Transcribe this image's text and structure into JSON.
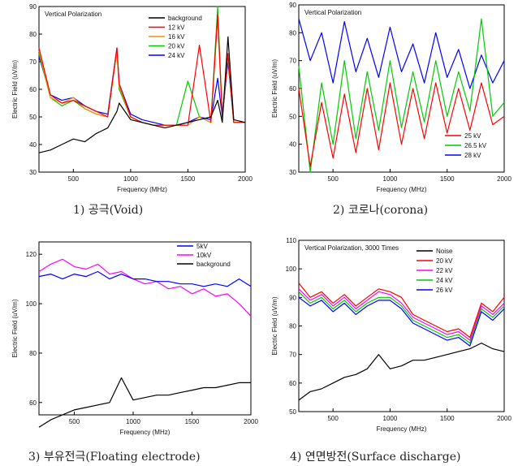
{
  "captions": [
    "1) 공극(Void)",
    "2) 코로나(corona)",
    "3) 부유전극(Floating electrode)",
    "4) 연면방전(Surface discharge)"
  ],
  "chart_data": [
    {
      "type": "line",
      "title": "Vertical Polarization",
      "xlabel": "Frequency (MHz)",
      "ylabel": "Electric Field (uV/m)",
      "xlim": [
        200,
        2000
      ],
      "ylim": [
        30,
        90
      ],
      "xticks": [
        500,
        1000,
        1500,
        2000
      ],
      "yticks": [
        30,
        40,
        50,
        60,
        70,
        80,
        90
      ],
      "legend_position": "top-right",
      "x": [
        200,
        300,
        400,
        500,
        600,
        700,
        800,
        880,
        900,
        1000,
        1100,
        1200,
        1300,
        1400,
        1500,
        1600,
        1700,
        1760,
        1800,
        1850,
        1900,
        2000
      ],
      "series": [
        {
          "name": "background",
          "color": "#000000",
          "values": [
            37,
            38,
            40,
            42,
            41,
            44,
            46,
            52,
            55,
            49,
            48,
            47,
            46,
            47,
            48,
            49,
            50,
            56,
            48,
            79,
            49,
            48
          ]
        },
        {
          "name": "12 kV",
          "color": "#ff0000",
          "values": [
            75,
            58,
            55,
            56,
            54,
            52,
            50,
            75,
            62,
            50,
            48,
            47,
            47,
            47,
            47,
            76,
            48,
            87,
            50,
            73,
            48,
            48
          ]
        },
        {
          "name": "16 kV",
          "color": "#ff8c00",
          "values": [
            74,
            57,
            55,
            57,
            53,
            51,
            50,
            74,
            61,
            50,
            48,
            47,
            47,
            47,
            47,
            50,
            48,
            86,
            50,
            72,
            48,
            48
          ]
        },
        {
          "name": "20 kV",
          "color": "#00cc00",
          "values": [
            73,
            57,
            54,
            56,
            53,
            51,
            50,
            74,
            60,
            50,
            48,
            47,
            47,
            47,
            63,
            50,
            48,
            90,
            50,
            72,
            48,
            48
          ]
        },
        {
          "name": "24 kV",
          "color": "#0000ff",
          "values": [
            72,
            58,
            56,
            57,
            54,
            52,
            51,
            75,
            62,
            51,
            49,
            48,
            47,
            47,
            48,
            50,
            49,
            64,
            50,
            70,
            48,
            48
          ]
        }
      ]
    },
    {
      "type": "line",
      "title": "Vertical Polarization",
      "xlabel": "Frequency (MHz)",
      "ylabel": "Electric Field (uV/m)",
      "xlim": [
        200,
        2000
      ],
      "ylim": [
        30,
        90
      ],
      "xticks": [
        500,
        1000,
        1500,
        2000
      ],
      "yticks": [
        30,
        40,
        50,
        60,
        70,
        80,
        90
      ],
      "legend_position": "bottom-right",
      "x": [
        200,
        300,
        400,
        500,
        600,
        700,
        800,
        900,
        1000,
        1100,
        1200,
        1300,
        1400,
        1500,
        1600,
        1700,
        1800,
        1900,
        2000
      ],
      "series": [
        {
          "name": "25 kV",
          "color": "#ff0000",
          "values": [
            60,
            32,
            55,
            35,
            58,
            37,
            60,
            38,
            62,
            40,
            60,
            42,
            62,
            44,
            60,
            45,
            62,
            47,
            50
          ]
        },
        {
          "name": "26.5 kV",
          "color": "#00cc00",
          "values": [
            68,
            30,
            62,
            40,
            70,
            42,
            66,
            45,
            70,
            46,
            66,
            48,
            70,
            50,
            66,
            52,
            85,
            50,
            55
          ]
        },
        {
          "name": "28 kV",
          "color": "#0000ff",
          "values": [
            85,
            70,
            80,
            62,
            84,
            66,
            78,
            64,
            82,
            66,
            76,
            62,
            80,
            64,
            74,
            60,
            72,
            62,
            70
          ]
        }
      ]
    },
    {
      "type": "line",
      "title": "",
      "xlabel": "Frequency (MHz)",
      "ylabel": "Electric Field (uV/m)",
      "xlim": [
        200,
        2000
      ],
      "ylim": [
        55,
        125
      ],
      "xticks": [
        500,
        1000,
        1500,
        2000
      ],
      "yticks": [
        60,
        80,
        100,
        120
      ],
      "legend_position": "top-right",
      "x": [
        200,
        300,
        400,
        500,
        600,
        700,
        800,
        900,
        1000,
        1100,
        1200,
        1300,
        1400,
        1500,
        1600,
        1700,
        1800,
        1900,
        2000
      ],
      "series": [
        {
          "name": "5kV",
          "color": "#0000ff",
          "values": [
            111,
            112,
            110,
            112,
            111,
            113,
            110,
            112,
            110,
            110,
            109,
            109,
            108,
            108,
            107,
            108,
            107,
            110,
            107
          ]
        },
        {
          "name": "10kV",
          "color": "#ff00ff",
          "values": [
            113,
            116,
            118,
            115,
            114,
            116,
            112,
            113,
            110,
            108,
            109,
            106,
            107,
            104,
            106,
            103,
            104,
            100,
            95
          ]
        },
        {
          "name": "background",
          "color": "#000000",
          "values": [
            50,
            53,
            55,
            57,
            58,
            59,
            60,
            70,
            61,
            62,
            63,
            63,
            64,
            65,
            66,
            66,
            67,
            68,
            68
          ]
        }
      ]
    },
    {
      "type": "line",
      "title": "Vertical Polarization, 3000 Times",
      "xlabel": "Frequency (MHz)",
      "ylabel": "Electric Field (uV/m)",
      "xlim": [
        200,
        2000
      ],
      "ylim": [
        50,
        110
      ],
      "xticks": [
        500,
        1000,
        1500,
        2000
      ],
      "yticks": [
        50,
        60,
        70,
        80,
        90,
        100,
        110
      ],
      "legend_position": "top-right",
      "x": [
        200,
        300,
        400,
        500,
        600,
        700,
        800,
        900,
        1000,
        1100,
        1200,
        1300,
        1400,
        1500,
        1600,
        1700,
        1800,
        1900,
        2000
      ],
      "series": [
        {
          "name": "Noise",
          "color": "#000000",
          "values": [
            54,
            57,
            58,
            60,
            62,
            63,
            65,
            70,
            65,
            66,
            68,
            68,
            69,
            70,
            71,
            72,
            74,
            72,
            71
          ]
        },
        {
          "name": "20 kV",
          "color": "#ff0000",
          "values": [
            95,
            90,
            92,
            88,
            91,
            87,
            90,
            93,
            92,
            90,
            84,
            82,
            80,
            78,
            79,
            76,
            88,
            85,
            90
          ]
        },
        {
          "name": "22 kV",
          "color": "#ff00ff",
          "values": [
            93,
            89,
            91,
            87,
            90,
            86,
            89,
            92,
            91,
            88,
            83,
            81,
            79,
            77,
            78,
            75,
            87,
            84,
            88
          ]
        },
        {
          "name": "24 kV",
          "color": "#00cc00",
          "values": [
            92,
            88,
            90,
            86,
            89,
            85,
            88,
            90,
            90,
            87,
            82,
            80,
            78,
            76,
            77,
            74,
            86,
            83,
            87
          ]
        },
        {
          "name": "26 kV",
          "color": "#0000ff",
          "values": [
            90,
            87,
            89,
            85,
            88,
            84,
            87,
            89,
            89,
            86,
            81,
            79,
            77,
            75,
            76,
            73,
            85,
            82,
            86
          ]
        }
      ]
    }
  ]
}
